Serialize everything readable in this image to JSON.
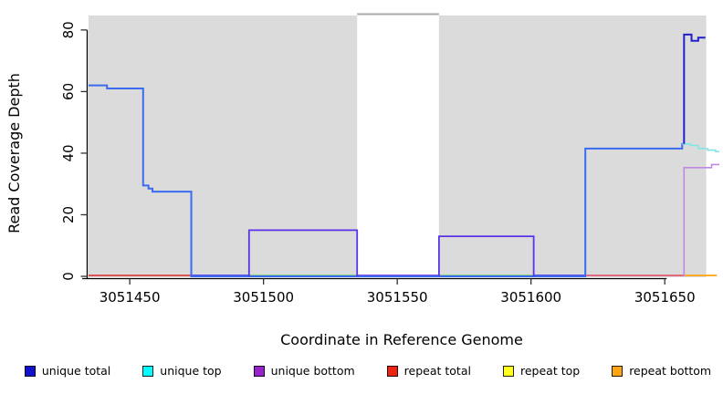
{
  "chart_data": {
    "type": "line",
    "title": "",
    "xlabel": "Coordinate in Reference Genome",
    "ylabel": "Read Coverage Depth",
    "xlim": [
      3051434.6,
      3051670.4
    ],
    "ylim": [
      0,
      84.7
    ],
    "xticks": [
      3051450,
      3051500,
      3051550,
      3051600,
      3051650
    ],
    "yticks": [
      0,
      20,
      40,
      60,
      80
    ],
    "grid": false,
    "plot_background": "#FFFFFF",
    "band_color": "#DBDBDB",
    "bands": [
      {
        "x0": 3051434.6,
        "x1": 3051535.0,
        "color": "#DBDBDB"
      },
      {
        "x0": 3051565.6,
        "x1": 3051665.5,
        "color": "#DBDBDB"
      }
    ],
    "gap_top_line": {
      "x0": 3051535.0,
      "x1": 3051565.6,
      "color": "#A8A8A8"
    },
    "baseline_segments": [
      {
        "x0": 3051434.6,
        "x1": 3051473.0,
        "color": "#DC4040"
      },
      {
        "x0": 3051473.0,
        "x1": 3051494.6,
        "color": "#4B3BE8"
      },
      {
        "x0": 3051494.6,
        "x1": 3051535.0,
        "color": "#77CC77"
      },
      {
        "x0": 3051535.0,
        "x1": 3051565.6,
        "color": "#6B3BE0"
      },
      {
        "x0": 3051565.6,
        "x1": 3051601.0,
        "color": "#77CC77"
      },
      {
        "x0": 3051601.0,
        "x1": 3051620.3,
        "color": "#4B3BE8"
      },
      {
        "x0": 3051620.3,
        "x1": 3051657.0,
        "color": "#E25C74"
      },
      {
        "x0": 3051657.0,
        "x1": 3051669.5,
        "color": "#FFA513"
      }
    ],
    "series": [
      {
        "name": "unique-total-main",
        "legend": "unique total",
        "color": "#3B6BF0",
        "width": 2,
        "points": [
          [
            3051434.6,
            62
          ],
          [
            3051441.5,
            61
          ],
          [
            3051455,
            29.5
          ],
          [
            3051457,
            28.5
          ],
          [
            3051458.5,
            27.5
          ],
          [
            3051473,
            0
          ],
          [
            3051620.3,
            41.5
          ],
          [
            3051656.5,
            43
          ]
        ],
        "end": 3051657.2
      },
      {
        "name": "unique-bottom-block-1",
        "legend": "unique bottom",
        "color": "#5B33E8",
        "width": 1.8,
        "v0": 0,
        "points": [
          [
            3051494.6,
            15
          ]
        ],
        "end": 3051535.0,
        "v1": 0
      },
      {
        "name": "unique-bottom-block-2",
        "legend": "unique bottom",
        "color": "#5B33E8",
        "width": 1.8,
        "v0": 0,
        "points": [
          [
            3051565.6,
            13
          ]
        ],
        "end": 3051601.0,
        "v1": 0
      },
      {
        "name": "unique-bottom-right",
        "legend": "unique bottom",
        "color": "#C287E3",
        "width": 1.6,
        "v0": 0,
        "points": [
          [
            3051657.2,
            35.3
          ],
          [
            3051667.5,
            36.3
          ]
        ],
        "end": 3051670.4
      },
      {
        "name": "unique-top-right",
        "legend": "unique top",
        "color": "#7FE5E8",
        "width": 1.6,
        "points": [
          [
            3051656.5,
            43
          ],
          [
            3051659.5,
            42.5
          ],
          [
            3051662.5,
            41.5
          ],
          [
            3051666,
            41
          ],
          [
            3051669,
            40.5
          ]
        ],
        "end": 3051670.4
      },
      {
        "name": "unique-total-peak",
        "legend": "unique total",
        "color": "#2121CC",
        "width": 2,
        "v0": 43,
        "points": [
          [
            3051657.2,
            78.5
          ],
          [
            3051660,
            76.5
          ],
          [
            3051662.5,
            77.5
          ]
        ],
        "end": 3051665.2
      }
    ],
    "legend": [
      {
        "label": "unique total",
        "color": "#1111CC"
      },
      {
        "label": "unique top",
        "color": "#00FFFF"
      },
      {
        "label": "unique bottom",
        "color": "#9922CC"
      },
      {
        "label": "repeat total",
        "color": "#EE2211"
      },
      {
        "label": "repeat top",
        "color": "#FFFF22"
      },
      {
        "label": "repeat bottom",
        "color": "#FFA513"
      }
    ],
    "legend_position": "bottom"
  }
}
